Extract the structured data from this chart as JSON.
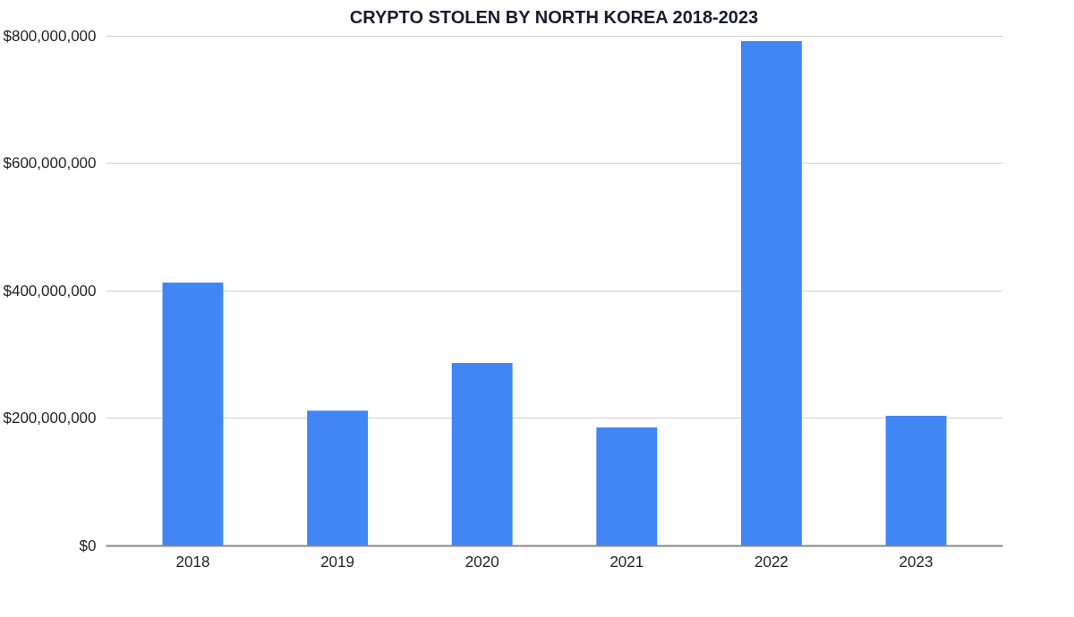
{
  "chart_data": {
    "type": "bar",
    "title": "CRYPTO STOLEN BY NORTH KOREA 2018-2023",
    "categories": [
      "2018",
      "2019",
      "2020",
      "2021",
      "2022",
      "2023"
    ],
    "values": [
      413000000,
      212000000,
      287000000,
      186000000,
      792000000,
      204000000
    ],
    "color": "#4285f4",
    "ylim": [
      0,
      800000000
    ],
    "yticks": [
      {
        "value": 0,
        "label": "$0"
      },
      {
        "value": 200000000,
        "label": "$200,000,000"
      },
      {
        "value": 400000000,
        "label": "$400,000,000"
      },
      {
        "value": 600000000,
        "label": "$600,000,000"
      },
      {
        "value": 800000000,
        "label": "$800,000,000"
      }
    ],
    "grid": "y"
  }
}
